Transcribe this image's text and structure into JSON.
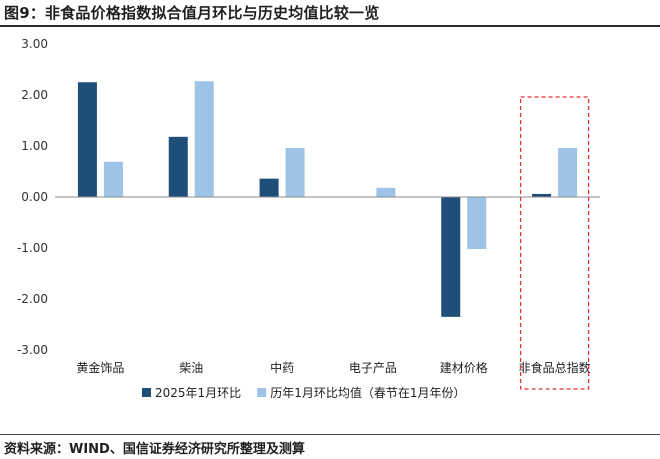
{
  "figure": {
    "title": "图9：非食品价格指数拟合值月环比与历史均值比较一览",
    "source": "资料来源：WIND、国信证券经济研究所整理及测算"
  },
  "chart_data": {
    "type": "bar",
    "categories": [
      "黄金饰品",
      "柴油",
      "中药",
      "电子产品",
      "建材价格",
      "非食品总指数"
    ],
    "series": [
      {
        "name": "2025年1月环比",
        "color": "#1f4e79",
        "values": [
          2.25,
          1.18,
          0.36,
          0.0,
          -2.35,
          0.06
        ]
      },
      {
        "name": "历年1月环比均值（春节在1月年份）",
        "color": "#9dc3e6",
        "values": [
          0.69,
          2.27,
          0.96,
          0.18,
          -1.02,
          0.96
        ]
      }
    ],
    "y_ticks": [
      "3.00",
      "2.00",
      "1.00",
      "0.00",
      "-1.00",
      "-2.00",
      "-3.00"
    ],
    "ylim": [
      -3,
      3
    ],
    "grid": false,
    "legend_position": "bottom",
    "highlight": {
      "category": "非食品总指数",
      "style": "red dashed box"
    }
  }
}
